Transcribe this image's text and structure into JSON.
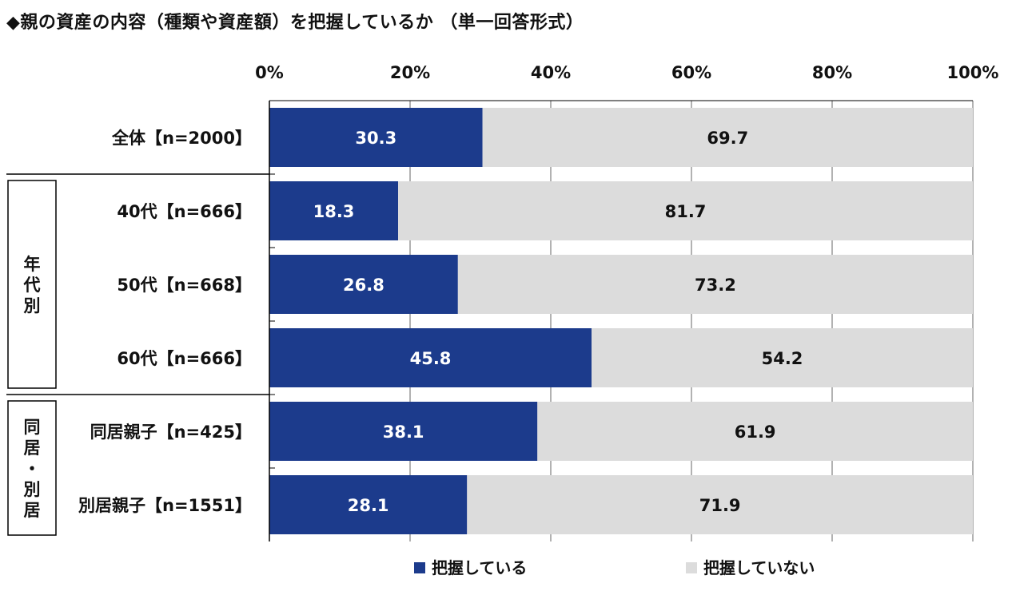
{
  "title": "◆親の資産の内容（種類や資産額）を把握しているか （単一回答形式）",
  "chart_data": {
    "type": "bar",
    "orientation": "horizontal",
    "stacked": true,
    "percent_stacked": true,
    "categories": [
      "全体【n=2000】",
      "40代【n=666】",
      "50代【n=668】",
      "60代【n=666】",
      "同居親子【n=425】",
      "別居親子【n=1551】"
    ],
    "groups": [
      {
        "label": "",
        "members": [
          0
        ]
      },
      {
        "label": "年代別",
        "members": [
          1,
          2,
          3
        ]
      },
      {
        "label": "同居・別居",
        "members": [
          4,
          5
        ]
      }
    ],
    "series": [
      {
        "name": "把握している",
        "color": "#1c3b8c",
        "label_color": "#ffffff",
        "values": [
          30.3,
          18.3,
          26.8,
          45.8,
          38.1,
          28.1
        ]
      },
      {
        "name": "把握していない",
        "color": "#dcdcdc",
        "label_color": "#111111",
        "values": [
          69.7,
          81.7,
          73.2,
          54.2,
          61.9,
          71.9
        ]
      }
    ],
    "xlim": [
      0,
      100
    ],
    "xticks": [
      "0%",
      "20%",
      "40%",
      "60%",
      "80%",
      "100%"
    ],
    "legend_position": "bottom",
    "grid": "vertical"
  }
}
